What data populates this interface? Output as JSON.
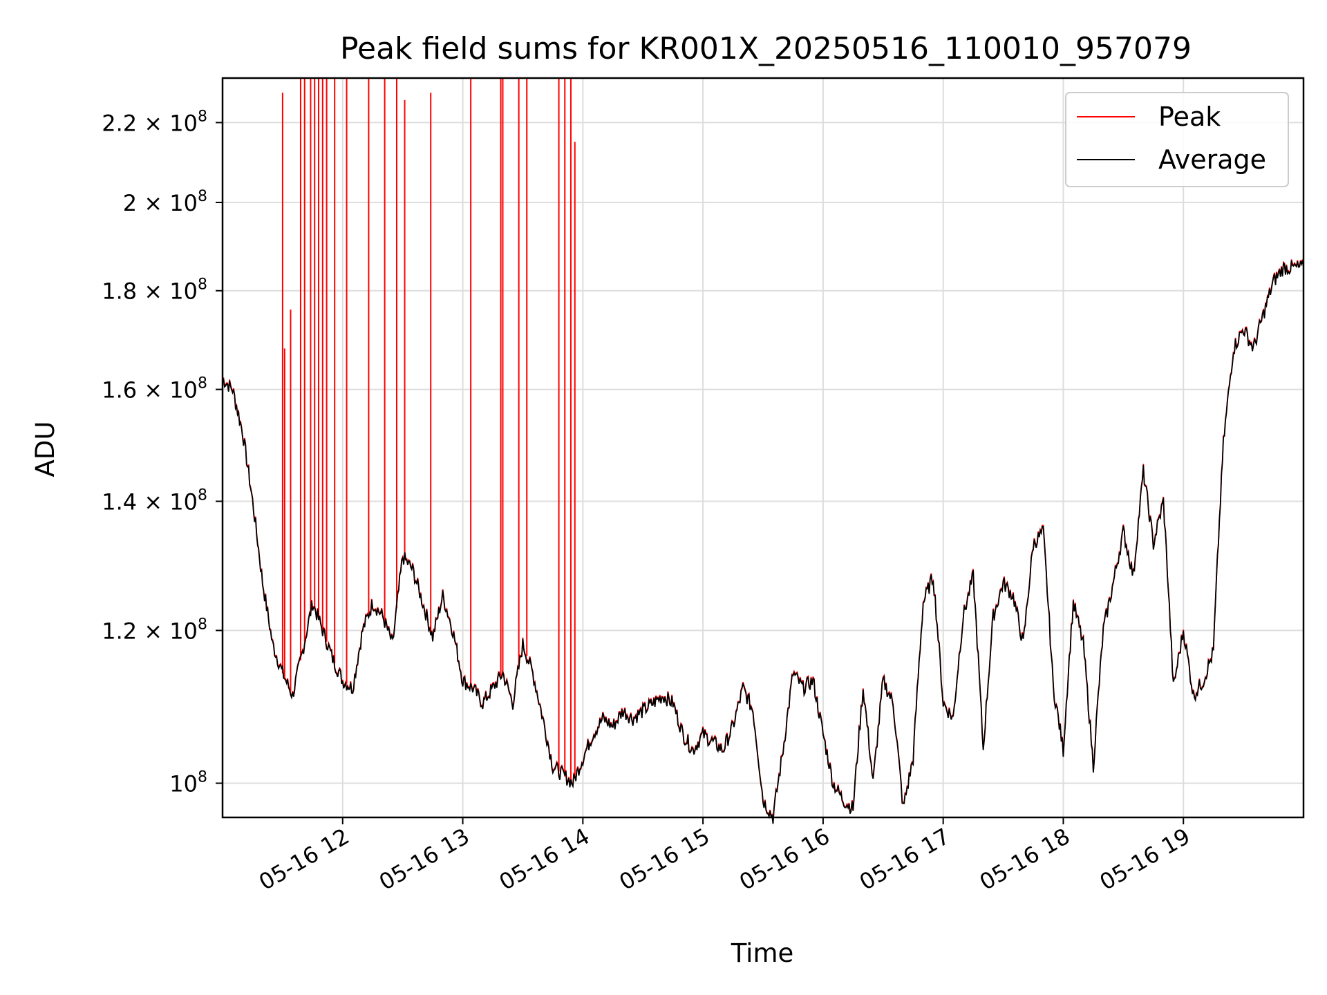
{
  "chart_data": {
    "type": "line",
    "title": "Peak field sums for KR001X_20250516_110010_957079",
    "xlabel": "Time",
    "ylabel": "ADU",
    "yscale": "log",
    "xlim": [
      "2025-05-16 11:00",
      "2025-05-16 20:00"
    ],
    "ylim": [
      96000000,
      232000000
    ],
    "grid": true,
    "legend_position": "top-right",
    "x_ticks": [
      "05-16 12",
      "05-16 13",
      "05-16 14",
      "05-16 15",
      "05-16 16",
      "05-16 17",
      "05-16 18",
      "05-16 19"
    ],
    "y_ticks": [
      {
        "value": 100000000,
        "mantissa": "",
        "exp": "8"
      },
      {
        "value": 120000000,
        "mantissa": "1.2",
        "exp": "8"
      },
      {
        "value": 140000000,
        "mantissa": "1.4",
        "exp": "8"
      },
      {
        "value": 160000000,
        "mantissa": "1.6",
        "exp": "8"
      },
      {
        "value": 180000000,
        "mantissa": "1.8",
        "exp": "8"
      },
      {
        "value": 200000000,
        "mantissa": "2",
        "exp": "8"
      },
      {
        "value": 220000000,
        "mantissa": "2.2",
        "exp": "8"
      }
    ],
    "series": [
      {
        "name": "Average",
        "color": "#000000",
        "x": [
          "11:00",
          "11:05",
          "11:10",
          "11:15",
          "11:20",
          "11:25",
          "11:30",
          "11:35",
          "11:40",
          "11:45",
          "11:50",
          "11:55",
          "12:00",
          "12:05",
          "12:10",
          "12:15",
          "12:20",
          "12:25",
          "12:30",
          "12:35",
          "12:40",
          "12:45",
          "12:50",
          "12:55",
          "13:00",
          "13:05",
          "13:10",
          "13:15",
          "13:20",
          "13:25",
          "13:30",
          "13:35",
          "13:40",
          "13:45",
          "13:50",
          "13:55",
          "14:00",
          "14:05",
          "14:10",
          "14:15",
          "14:20",
          "14:25",
          "14:30",
          "14:35",
          "14:40",
          "14:45",
          "14:50",
          "14:55",
          "15:00",
          "15:05",
          "15:10",
          "15:15",
          "15:20",
          "15:25",
          "15:30",
          "15:35",
          "15:40",
          "15:45",
          "15:50",
          "15:55",
          "16:00",
          "16:05",
          "16:10",
          "16:15",
          "16:20",
          "16:25",
          "16:30",
          "16:35",
          "16:40",
          "16:45",
          "16:50",
          "16:55",
          "17:00",
          "17:05",
          "17:10",
          "17:15",
          "17:20",
          "17:25",
          "17:30",
          "17:35",
          "17:40",
          "17:45",
          "17:50",
          "17:55",
          "18:00",
          "18:05",
          "18:10",
          "18:15",
          "18:20",
          "18:25",
          "18:30",
          "18:35",
          "18:40",
          "18:45",
          "18:50",
          "18:55",
          "19:00",
          "19:05",
          "19:10",
          "19:15",
          "19:20",
          "19:25",
          "19:30",
          "19:35",
          "19:40",
          "19:45",
          "19:50",
          "19:55",
          "20:00"
        ],
        "values": [
          162000000,
          160000000,
          152000000,
          140000000,
          127000000,
          118000000,
          114000000,
          111000000,
          117000000,
          124000000,
          120000000,
          116000000,
          113000000,
          112000000,
          120000000,
          124000000,
          122000000,
          118000000,
          131000000,
          129000000,
          124000000,
          119000000,
          125000000,
          120000000,
          113000000,
          112000000,
          110000000,
          112000000,
          114000000,
          110000000,
          118000000,
          114000000,
          108000000,
          102000000,
          101000000,
          100000000,
          103000000,
          106000000,
          108000000,
          107000000,
          109000000,
          108000000,
          109000000,
          110000000,
          111000000,
          110000000,
          106000000,
          104000000,
          106000000,
          105000000,
          104000000,
          107000000,
          112000000,
          109000000,
          98000000,
          96000000,
          104000000,
          114000000,
          112000000,
          113000000,
          106000000,
          100000000,
          98000000,
          97000000,
          112000000,
          100000000,
          113000000,
          110000000,
          97000000,
          103000000,
          124000000,
          128000000,
          110000000,
          108000000,
          122000000,
          128000000,
          104000000,
          122000000,
          127000000,
          125000000,
          118000000,
          133000000,
          135000000,
          112000000,
          104000000,
          124000000,
          118000000,
          102000000,
          120000000,
          127000000,
          135000000,
          128000000,
          145000000,
          133000000,
          140000000,
          112000000,
          120000000,
          111000000,
          113000000,
          117000000,
          150000000,
          168000000,
          172000000,
          168000000,
          175000000,
          182000000,
          185000000,
          185000000,
          185000000
        ],
        "note_sampled": true
      },
      {
        "name": "Peak",
        "color": "#ff0000",
        "spikes": [
          {
            "x": "11:30",
            "y": 228000000
          },
          {
            "x": "11:31",
            "y": 168000000
          },
          {
            "x": "11:34",
            "y": 176000000
          },
          {
            "x": "11:39",
            "y": 232000000
          },
          {
            "x": "11:41",
            "y": 232000000
          },
          {
            "x": "11:44",
            "y": 232000000
          },
          {
            "x": "11:46",
            "y": 232000000
          },
          {
            "x": "11:48",
            "y": 232000000
          },
          {
            "x": "11:50",
            "y": 232000000
          },
          {
            "x": "11:52",
            "y": 232000000
          },
          {
            "x": "11:56",
            "y": 232000000
          },
          {
            "x": "12:02",
            "y": 232000000
          },
          {
            "x": "12:13",
            "y": 232000000
          },
          {
            "x": "12:21",
            "y": 232000000
          },
          {
            "x": "12:27",
            "y": 232000000
          },
          {
            "x": "12:31",
            "y": 226000000
          },
          {
            "x": "12:44",
            "y": 228000000
          },
          {
            "x": "13:04",
            "y": 232000000
          },
          {
            "x": "13:19",
            "y": 232000000
          },
          {
            "x": "13:20",
            "y": 232000000
          },
          {
            "x": "13:28",
            "y": 232000000
          },
          {
            "x": "13:32",
            "y": 232000000
          },
          {
            "x": "13:48",
            "y": 232000000
          },
          {
            "x": "13:51",
            "y": 232000000
          },
          {
            "x": "13:54",
            "y": 232000000
          },
          {
            "x": "13:56",
            "y": 215000000
          }
        ]
      }
    ]
  }
}
